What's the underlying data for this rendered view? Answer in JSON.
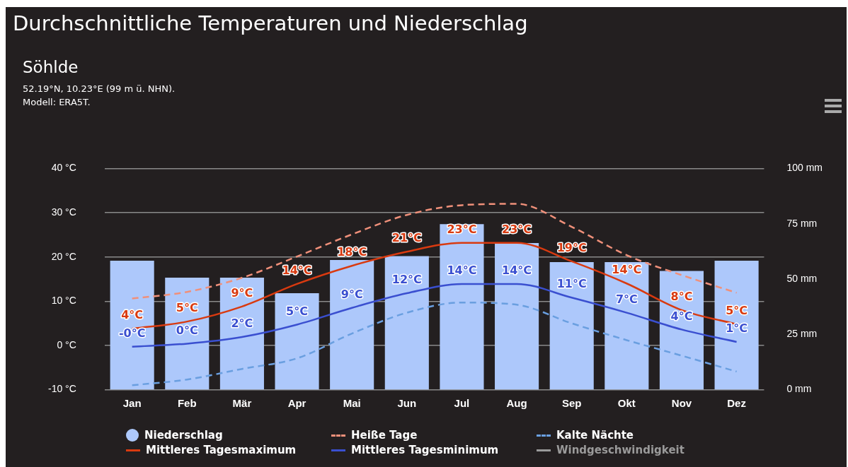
{
  "chart_data": {
    "type": "bar",
    "title": "Durchschnittliche Temperaturen und Niederschlag",
    "subtitle": "Söhlde",
    "annotations": [
      "52.19°N, 10.23°E (99 m ü. NHN).",
      "Modell: ERA5T."
    ],
    "categories": [
      "Jan",
      "Feb",
      "Mär",
      "Apr",
      "Mai",
      "Jun",
      "Jul",
      "Aug",
      "Sep",
      "Okt",
      "Nov",
      "Dez"
    ],
    "series": [
      {
        "name": "Niederschlag",
        "axis": "y2",
        "color": "#adc8fb",
        "values": [
          58.3,
          50.6,
          50.6,
          43.6,
          58.6,
          60.4,
          74.8,
          66.3,
          57.7,
          57.7,
          53.7,
          58.3
        ]
      },
      {
        "name": "Heiße Tage",
        "type": "line",
        "line_style": "dashed",
        "color": "#f0907a",
        "values": [
          10.6,
          12.1,
          15.3,
          20.1,
          25.1,
          29.5,
          31.7,
          32,
          26.8,
          20.4,
          15.9,
          11.9
        ]
      },
      {
        "name": "Kalte Nächte",
        "type": "line",
        "line_style": "dashed",
        "color": "#6a9fe0",
        "values": [
          -9,
          -7.7,
          -5.3,
          -2.9,
          2.7,
          7.4,
          9.7,
          9.2,
          5,
          1.2,
          -2.3,
          -5.9
        ]
      },
      {
        "name": "Mittleres Tagesmaximum",
        "type": "line",
        "line_style": "solid",
        "color": "#d93a10",
        "values": [
          3.8,
          5.4,
          8.8,
          13.9,
          18,
          21.2,
          23.2,
          23.2,
          19,
          14,
          8,
          4.8
        ],
        "value_labels": [
          "4°C",
          "5°C",
          "9°C",
          "14°C",
          "18°C",
          "21°C",
          "23°C",
          "23°C",
          "19°C",
          "14°C",
          "8°C",
          "5°C"
        ]
      },
      {
        "name": "Mittleres Tagesminimum",
        "type": "line",
        "line_style": "solid",
        "color": "#3a4fd0",
        "values": [
          -0.3,
          0.4,
          1.9,
          4.7,
          8.5,
          11.8,
          13.9,
          13.9,
          10.8,
          7.4,
          3.6,
          0.8
        ],
        "value_labels": [
          "-0°C",
          "0°C",
          "2°C",
          "5°C",
          "9°C",
          "12°C",
          "14°C",
          "14°C",
          "11°C",
          "7°C",
          "4°C",
          "1°C"
        ]
      },
      {
        "name": "Windgeschwindigkeit",
        "type": "line",
        "line_style": "solid",
        "color": "#9a9a9a",
        "values": [
          null,
          null,
          null,
          null,
          null,
          null,
          null,
          null,
          null,
          null,
          null,
          null
        ]
      }
    ],
    "ylim": [
      -10,
      40
    ],
    "yticks": [
      {
        "value": -10,
        "label": "-10 °C"
      },
      {
        "value": 0,
        "label": "0 °C"
      },
      {
        "value": 10,
        "label": "10 °C"
      },
      {
        "value": 20,
        "label": "20 °C"
      },
      {
        "value": 30,
        "label": "30 °C"
      },
      {
        "value": 40,
        "label": "40 °C"
      }
    ],
    "y2lim": [
      0,
      100
    ],
    "y2ticks": [
      {
        "value": 0,
        "label": "0 mm"
      },
      {
        "value": 25,
        "label": "25 mm"
      },
      {
        "value": 50,
        "label": "50 mm"
      },
      {
        "value": 75,
        "label": "75 mm"
      },
      {
        "value": 100,
        "label": "100 mm"
      }
    ],
    "grid": "y",
    "legend": "bottom",
    "marker": "none"
  }
}
